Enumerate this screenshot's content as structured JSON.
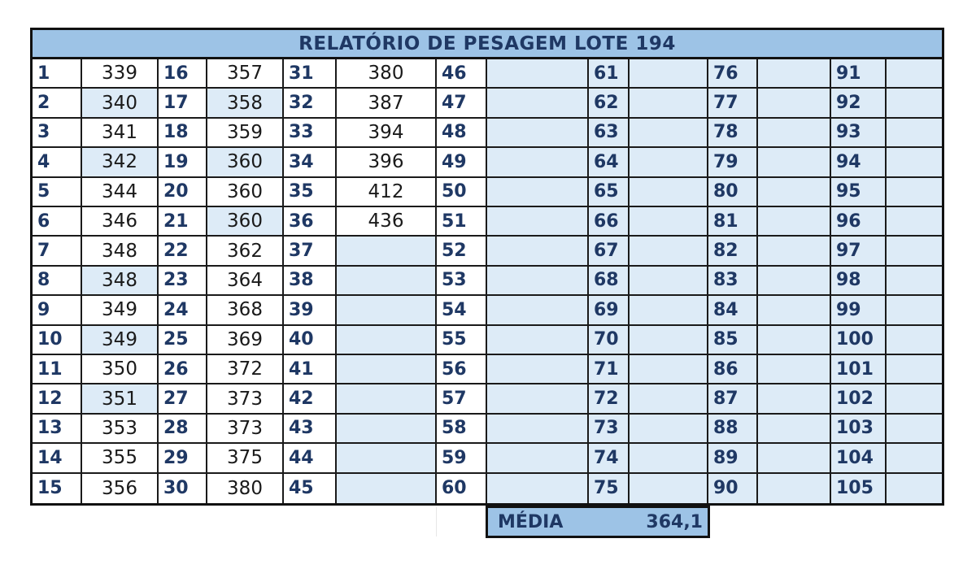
{
  "report": {
    "title": "RELATÓRIO DE PESAGEM LOTE 194",
    "media_label": "MÉDIA",
    "media_value": "364,1"
  },
  "colors": {
    "header_fill": "#9dc3e6",
    "alt_fill": "#ddebf7",
    "index_text": "#1f3864",
    "border": "#111111"
  },
  "columns": [
    {
      "start": 1,
      "weights": [
        "339",
        "340",
        "341",
        "342",
        "344",
        "346",
        "348",
        "348",
        "349",
        "349",
        "350",
        "351",
        "353",
        "355",
        "356"
      ]
    },
    {
      "start": 16,
      "weights": [
        "357",
        "358",
        "359",
        "360",
        "360",
        "360",
        "362",
        "364",
        "368",
        "369",
        "372",
        "373",
        "373",
        "375",
        "380"
      ]
    },
    {
      "start": 31,
      "weights": [
        "380",
        "387",
        "394",
        "396",
        "412",
        "436",
        "",
        "",
        "",
        "",
        "",
        "",
        "",
        "",
        ""
      ]
    },
    {
      "start": 46,
      "weights": [
        "",
        "",
        "",
        "",
        "",
        "",
        "",
        "",
        "",
        "",
        "",
        "",
        "",
        "",
        ""
      ]
    },
    {
      "start": 61,
      "weights": [
        "",
        "",
        "",
        "",
        "",
        "",
        "",
        "",
        "",
        "",
        "",
        "",
        "",
        "",
        ""
      ]
    },
    {
      "start": 76,
      "weights": [
        "",
        "",
        "",
        "",
        "",
        "",
        "",
        "",
        "",
        "",
        "",
        "",
        "",
        "",
        ""
      ]
    },
    {
      "start": 91,
      "weights": [
        "",
        "",
        "",
        "",
        "",
        "",
        "",
        "",
        "",
        "",
        "",
        "",
        "",
        "",
        ""
      ]
    }
  ]
}
